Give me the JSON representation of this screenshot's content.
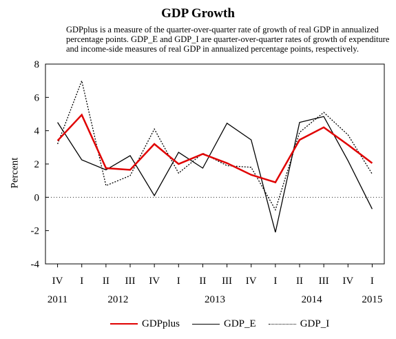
{
  "chart_data": {
    "type": "line",
    "title": "GDP Growth",
    "subtitle": "GDPplus is a measure of the quarter-over-quarter rate of growth of real GDP in annualized percentage points. GDP_E and GDP_I are quarter-over-quarter rates of growth of expenditure and income-side measures of real GDP in annualized percentage points, respectively.",
    "ylabel": "Percent",
    "xlabel": "",
    "ylim": [
      -4,
      8
    ],
    "yticks": [
      "-4",
      "-2",
      "0",
      "2",
      "4",
      "6",
      "8"
    ],
    "categories": [
      "IV",
      "I",
      "II",
      "III",
      "IV",
      "I",
      "II",
      "III",
      "IV",
      "I",
      "II",
      "III",
      "IV",
      "I"
    ],
    "years": [
      {
        "label": "2011",
        "index": 0
      },
      {
        "label": "2012",
        "index": 2.5
      },
      {
        "label": "2013",
        "index": 6.5
      },
      {
        "label": "2014",
        "index": 10.5
      },
      {
        "label": "2015",
        "index": 13
      }
    ],
    "grid": false,
    "legend_position": "bottom",
    "series": [
      {
        "name": "GDPplus",
        "color": "#e00000",
        "style": "solid",
        "width": 2.5,
        "values": [
          3.4,
          4.95,
          1.75,
          1.65,
          3.2,
          2.0,
          2.6,
          2.05,
          1.35,
          0.9,
          3.45,
          4.2,
          3.15,
          2.05
        ]
      },
      {
        "name": "GDP_E",
        "color": "#000000",
        "style": "solid",
        "width": 1.3,
        "values": [
          4.5,
          2.25,
          1.65,
          2.5,
          0.1,
          2.7,
          1.75,
          4.45,
          3.45,
          -2.1,
          4.5,
          4.85,
          2.2,
          -0.7
        ]
      },
      {
        "name": "GDP_I",
        "color": "#000000",
        "style": "dotted",
        "width": 1.3,
        "values": [
          3.2,
          7.0,
          0.7,
          1.3,
          4.1,
          1.45,
          2.65,
          1.9,
          1.8,
          -0.75,
          3.9,
          5.1,
          3.75,
          1.4
        ]
      }
    ]
  }
}
